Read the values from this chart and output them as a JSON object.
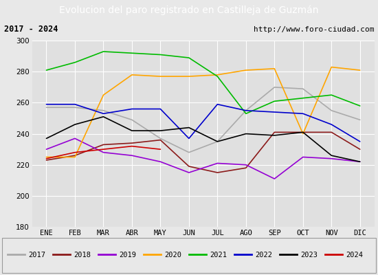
{
  "title": "Evolucion del paro registrado en Castilleja de Guzmán",
  "subtitle_left": "2017 - 2024",
  "subtitle_right": "http://www.foro-ciudad.com",
  "months": [
    "ENE",
    "FEB",
    "MAR",
    "ABR",
    "MAY",
    "JUN",
    "JUL",
    "AGO",
    "SEP",
    "OCT",
    "NOV",
    "DIC"
  ],
  "ylim": [
    180,
    300
  ],
  "yticks": [
    180,
    200,
    220,
    240,
    260,
    280,
    300
  ],
  "series": {
    "2017": {
      "color": "#aaaaaa",
      "values": [
        257,
        257,
        255,
        249,
        237,
        228,
        235,
        255,
        270,
        269,
        255,
        249
      ]
    },
    "2018": {
      "color": "#8b1a1a",
      "values": [
        223,
        226,
        233,
        234,
        236,
        219,
        215,
        218,
        241,
        241,
        241,
        230
      ]
    },
    "2019": {
      "color": "#9400d3",
      "values": [
        230,
        237,
        228,
        226,
        222,
        215,
        221,
        220,
        211,
        225,
        224,
        222
      ]
    },
    "2020": {
      "color": "#ffa500",
      "values": [
        225,
        225,
        265,
        278,
        277,
        277,
        278,
        281,
        282,
        240,
        283,
        281
      ]
    },
    "2021": {
      "color": "#00bb00",
      "values": [
        281,
        286,
        293,
        292,
        291,
        289,
        277,
        253,
        261,
        263,
        265,
        258
      ]
    },
    "2022": {
      "color": "#0000cc",
      "values": [
        259,
        259,
        253,
        256,
        256,
        237,
        259,
        255,
        254,
        253,
        246,
        235
      ]
    },
    "2023": {
      "color": "#000000",
      "values": [
        237,
        246,
        251,
        242,
        242,
        244,
        235,
        240,
        239,
        241,
        226,
        222
      ]
    },
    "2024": {
      "color": "#cc0000",
      "values": [
        224,
        228,
        230,
        232,
        230,
        null,
        null,
        null,
        null,
        null,
        null,
        null
      ]
    }
  },
  "background_color": "#e8e8e8",
  "plot_bg_color": "#e0e0e0",
  "title_bg_color": "#4472c4",
  "title_text_color": "#ffffff",
  "grid_color": "#ffffff",
  "subtitle_border_color": "#999999",
  "legend_border_color": "#999999",
  "figsize": [
    5.5,
    4.0
  ],
  "dpi": 100
}
